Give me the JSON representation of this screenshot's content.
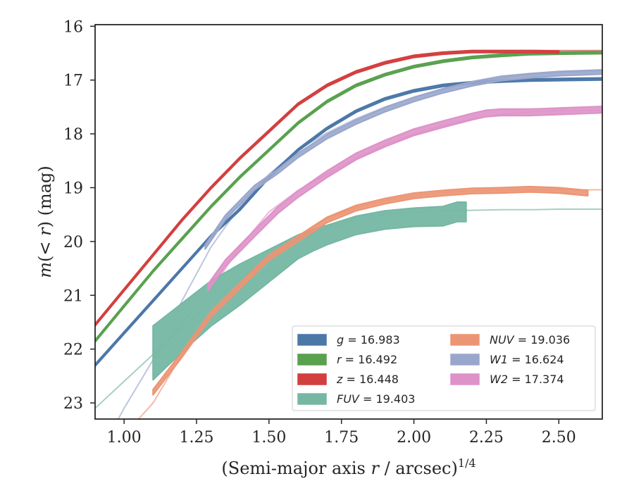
{
  "chart_data": {
    "type": "line",
    "xlabel": "(Semi-major axis r / arcsec)^{1/4}",
    "ylabel": "m(< r) (mag)",
    "xlim": [
      0.9,
      2.65
    ],
    "ylim": [
      23.3,
      15.97
    ],
    "y_inverted": true,
    "grid": false,
    "legend_position": "lower-right",
    "x_ticks": [
      1.0,
      1.25,
      1.5,
      1.75,
      2.0,
      2.25,
      2.5
    ],
    "x_tick_labels": [
      "1.00",
      "1.25",
      "1.50",
      "1.75",
      "2.00",
      "2.25",
      "2.50"
    ],
    "y_ticks": [
      16,
      17,
      18,
      19,
      20,
      21,
      22,
      23
    ],
    "y_tick_labels": [
      "16",
      "17",
      "18",
      "19",
      "20",
      "21",
      "22",
      "23"
    ],
    "legend": [
      {
        "label": "g = 16.983",
        "color": "#4c78a8"
      },
      {
        "label": "r = 16.492",
        "color": "#59a14f"
      },
      {
        "label": "z = 16.448",
        "color": "#d33f3f"
      },
      {
        "label": "FUV = 19.403",
        "color": "#76b7a4"
      },
      {
        "label": "NUV = 19.036",
        "color": "#ec9574"
      },
      {
        "label": "W1 = 16.624",
        "color": "#9aa7cc"
      },
      {
        "label": "W2 = 17.374",
        "color": "#de92c8"
      }
    ],
    "series": [
      {
        "name": "g = 16.983",
        "color": "#4c78a8",
        "model": {
          "x": [
            0.9,
            1.0,
            1.1,
            1.2,
            1.3,
            1.4,
            1.5,
            1.6,
            1.7,
            1.8,
            1.9,
            2.0,
            2.1,
            2.2,
            2.3,
            2.4,
            2.5,
            2.65
          ],
          "y": [
            22.3,
            21.7,
            21.1,
            20.5,
            19.9,
            19.4,
            18.8,
            18.3,
            17.9,
            17.58,
            17.35,
            17.2,
            17.1,
            17.05,
            17.02,
            17.0,
            16.99,
            16.98
          ]
        },
        "data": {
          "x": [
            0.9,
            1.0,
            1.1,
            1.2,
            1.3,
            1.4,
            1.5,
            1.6,
            1.7,
            1.8,
            1.9,
            2.0,
            2.1,
            2.2,
            2.3,
            2.4,
            2.5,
            2.65
          ],
          "y": [
            22.3,
            21.7,
            21.1,
            20.5,
            19.9,
            19.4,
            18.8,
            18.3,
            17.9,
            17.58,
            17.35,
            17.2,
            17.1,
            17.05,
            17.02,
            17.0,
            16.99,
            16.98
          ],
          "err": 0.02
        }
      },
      {
        "name": "r = 16.492",
        "color": "#59a14f",
        "model": {
          "x": [
            0.9,
            1.0,
            1.1,
            1.2,
            1.3,
            1.4,
            1.5,
            1.6,
            1.7,
            1.8,
            1.9,
            2.0,
            2.1,
            2.2,
            2.3,
            2.4,
            2.5,
            2.65
          ],
          "y": [
            21.85,
            21.2,
            20.55,
            19.95,
            19.35,
            18.8,
            18.3,
            17.8,
            17.4,
            17.1,
            16.9,
            16.75,
            16.65,
            16.58,
            16.54,
            16.51,
            16.5,
            16.49
          ]
        },
        "data": {
          "x": [
            0.9,
            1.0,
            1.1,
            1.2,
            1.3,
            1.4,
            1.5,
            1.6,
            1.7,
            1.8,
            1.9,
            2.0,
            2.1,
            2.2,
            2.3,
            2.4,
            2.5,
            2.65
          ],
          "y": [
            21.85,
            21.2,
            20.55,
            19.95,
            19.35,
            18.8,
            18.3,
            17.8,
            17.4,
            17.1,
            16.9,
            16.75,
            16.65,
            16.58,
            16.54,
            16.51,
            16.5,
            16.49
          ],
          "err": 0.02
        }
      },
      {
        "name": "z = 16.448",
        "color": "#d33f3f",
        "model": {
          "x": [
            0.9,
            1.0,
            1.1,
            1.2,
            1.3,
            1.4,
            1.5,
            1.6,
            1.7,
            1.8,
            1.9,
            2.0,
            2.1,
            2.2,
            2.3,
            2.4,
            2.5,
            2.65
          ],
          "y": [
            21.55,
            20.9,
            20.25,
            19.6,
            19.0,
            18.45,
            17.95,
            17.45,
            17.1,
            16.85,
            16.68,
            16.56,
            16.5,
            16.47,
            16.46,
            16.45,
            16.45,
            16.45
          ]
        },
        "data": {
          "x": [
            0.9,
            1.0,
            1.1,
            1.2,
            1.3,
            1.4,
            1.5,
            1.6,
            1.7,
            1.8,
            1.9,
            2.0,
            2.1,
            2.2,
            2.3,
            2.4,
            2.5
          ],
          "y": [
            21.55,
            20.9,
            20.25,
            19.6,
            19.0,
            18.45,
            17.95,
            17.45,
            17.1,
            16.85,
            16.68,
            16.56,
            16.5,
            16.47,
            16.47,
            16.47,
            16.48
          ],
          "err": 0.02
        }
      },
      {
        "name": "FUV = 19.403",
        "color": "#76b7a4",
        "model": {
          "x": [
            0.9,
            1.0,
            1.1,
            1.2,
            1.3,
            1.4,
            1.5,
            1.6,
            1.7,
            1.8,
            1.9,
            2.0,
            2.1,
            2.2,
            2.3,
            2.4,
            2.5,
            2.65
          ],
          "y": [
            23.1,
            22.6,
            22.1,
            21.6,
            21.15,
            20.7,
            20.3,
            19.98,
            19.75,
            19.6,
            19.5,
            19.45,
            19.43,
            19.42,
            19.41,
            19.41,
            19.4,
            19.4
          ]
        },
        "data": {
          "x": [
            1.1,
            1.2,
            1.3,
            1.4,
            1.5,
            1.6,
            1.65,
            1.7,
            1.8,
            1.9,
            2.0,
            2.1,
            2.15,
            2.18
          ],
          "y": [
            22.07,
            21.6,
            21.15,
            20.8,
            20.45,
            20.1,
            19.98,
            19.88,
            19.7,
            19.6,
            19.55,
            19.53,
            19.45,
            19.45
          ],
          "err": [
            0.5,
            0.45,
            0.42,
            0.38,
            0.3,
            0.22,
            0.2,
            0.18,
            0.17,
            0.17,
            0.17,
            0.18,
            0.18,
            0.18
          ]
        }
      },
      {
        "name": "NUV = 19.036",
        "color": "#ec9574",
        "model": {
          "x": [
            1.05,
            1.1,
            1.2,
            1.3,
            1.4,
            1.5,
            1.6,
            1.7,
            1.8,
            1.9,
            2.0,
            2.1,
            2.2,
            2.3,
            2.4,
            2.5,
            2.65
          ],
          "y": [
            23.3,
            23.0,
            22.1,
            21.3,
            20.8,
            20.3,
            19.9,
            19.57,
            19.37,
            19.24,
            19.15,
            19.09,
            19.06,
            19.05,
            19.04,
            19.04,
            19.04
          ]
        },
        "data": {
          "x": [
            1.1,
            1.2,
            1.3,
            1.4,
            1.5,
            1.6,
            1.7,
            1.8,
            1.9,
            2.0,
            2.1,
            2.2,
            2.3,
            2.4,
            2.5,
            2.6
          ],
          "y": [
            22.8,
            22.1,
            21.35,
            20.82,
            20.3,
            19.95,
            19.6,
            19.38,
            19.25,
            19.15,
            19.1,
            19.06,
            19.05,
            19.03,
            19.05,
            19.1
          ],
          "err": 0.05
        }
      },
      {
        "name": "W1 = 16.624",
        "color": "#9aa7cc",
        "model": {
          "x": [
            0.98,
            1.0,
            1.1,
            1.2,
            1.3,
            1.4,
            1.5,
            1.6,
            1.7,
            1.8,
            1.9,
            2.0,
            2.1,
            2.2,
            2.3,
            2.4,
            2.5,
            2.65
          ],
          "y": [
            23.3,
            23.1,
            22.2,
            21.1,
            20.1,
            19.35,
            18.75,
            18.3,
            17.98,
            17.72,
            17.5,
            17.32,
            17.18,
            17.05,
            16.96,
            16.9,
            16.86,
            16.83
          ]
        },
        "data": {
          "x": [
            1.28,
            1.35,
            1.45,
            1.53,
            1.6,
            1.7,
            1.8,
            1.9,
            2.0,
            2.1,
            2.2,
            2.3,
            2.4,
            2.5,
            2.65
          ],
          "y": [
            20.1,
            19.55,
            19.0,
            18.7,
            18.4,
            18.05,
            17.78,
            17.55,
            17.36,
            17.2,
            17.07,
            16.97,
            16.92,
            16.88,
            16.85
          ],
          "err": 0.04
        }
      },
      {
        "name": "W2 = 17.374",
        "color": "#de92c8",
        "model": {
          "x": [
            1.1,
            1.2,
            1.3,
            1.4,
            1.5,
            1.6,
            1.7,
            1.8,
            1.9,
            2.0,
            2.1,
            2.2,
            2.3,
            2.4,
            2.5,
            2.65
          ],
          "y": [
            22.2,
            21.5,
            20.9,
            20.1,
            19.45,
            19.05,
            18.75,
            18.45,
            18.2,
            18.0,
            17.85,
            17.72,
            17.64,
            17.59,
            17.57,
            17.56
          ]
        },
        "data": {
          "x": [
            1.29,
            1.35,
            1.45,
            1.53,
            1.6,
            1.7,
            1.8,
            1.9,
            2.0,
            2.1,
            2.2,
            2.25,
            2.3,
            2.4,
            2.5,
            2.65
          ],
          "y": [
            20.85,
            20.4,
            19.85,
            19.42,
            19.12,
            18.75,
            18.42,
            18.18,
            17.97,
            17.82,
            17.68,
            17.62,
            17.6,
            17.6,
            17.58,
            17.55
          ],
          "err": 0.06
        }
      }
    ]
  }
}
